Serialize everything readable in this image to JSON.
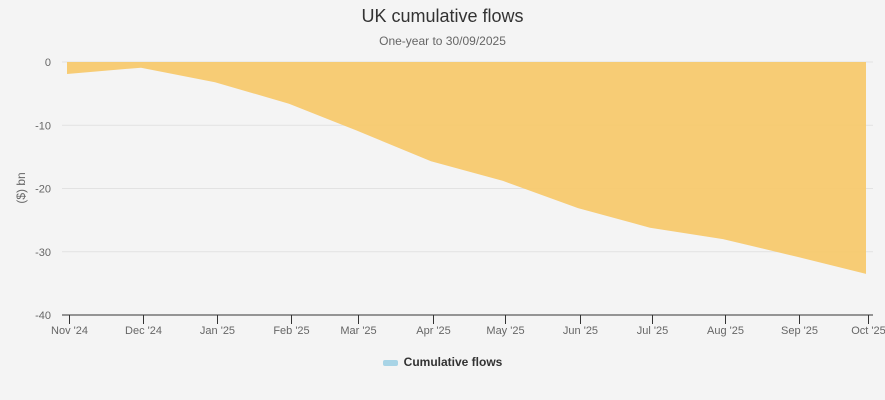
{
  "header": {
    "title": "UK cumulative flows",
    "subtitle": "One-year to 30/09/2025"
  },
  "legend": {
    "items": [
      {
        "label": "Cumulative flows",
        "color": "#a8d4e6"
      }
    ]
  },
  "colors": {
    "area_fill": "#f7c96e",
    "background": "#f4f4f4",
    "gridline": "#e2e2e2",
    "axis": "#333333"
  },
  "chart_data": {
    "type": "area",
    "title": "UK cumulative flows",
    "subtitle": "One-year to 30/09/2025",
    "xlabel": "",
    "ylabel": "($) bn",
    "ylim": [
      -40,
      0
    ],
    "yticks": [
      0,
      -10,
      -20,
      -30,
      -40
    ],
    "grid": true,
    "legend_position": "bottom",
    "categories": [
      "Nov '24",
      "Dec '24",
      "Jan '25",
      "Feb '25",
      "Mar '25",
      "Apr '25",
      "May '25",
      "Jun '25",
      "Jul '25",
      "Aug '25",
      "Sep '25",
      "Oct '25"
    ],
    "series": [
      {
        "name": "Cumulative flows",
        "values": [
          -1.9,
          -0.9,
          -3.2,
          -6.6,
          -10.8,
          -15.7,
          -18.8,
          -23.1,
          -26.2,
          -28.0,
          -30.8,
          -33.5
        ]
      }
    ]
  }
}
